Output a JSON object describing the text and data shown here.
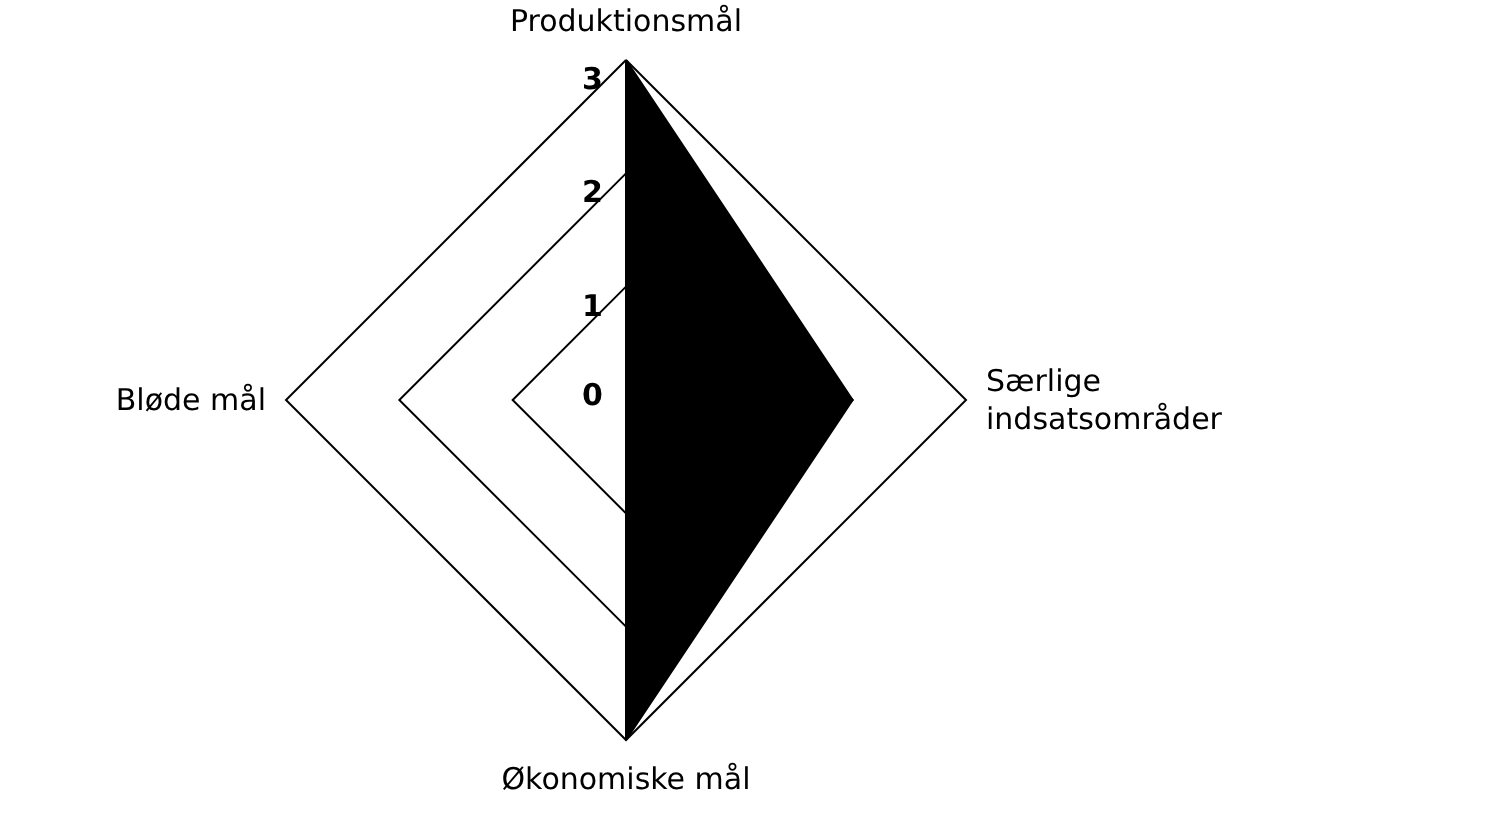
{
  "chart_data": {
    "type": "radar",
    "categories": [
      "Produktionsmål",
      "Særlige indsatsområder",
      "Økonomiske mål",
      "Bløde mål"
    ],
    "series": [
      {
        "color": "#000000",
        "values": [
          3,
          2,
          3,
          0
        ]
      }
    ],
    "ylim": [
      0,
      3
    ],
    "yticks": [
      0,
      1,
      2,
      3
    ],
    "grid": true,
    "marker": "none"
  }
}
